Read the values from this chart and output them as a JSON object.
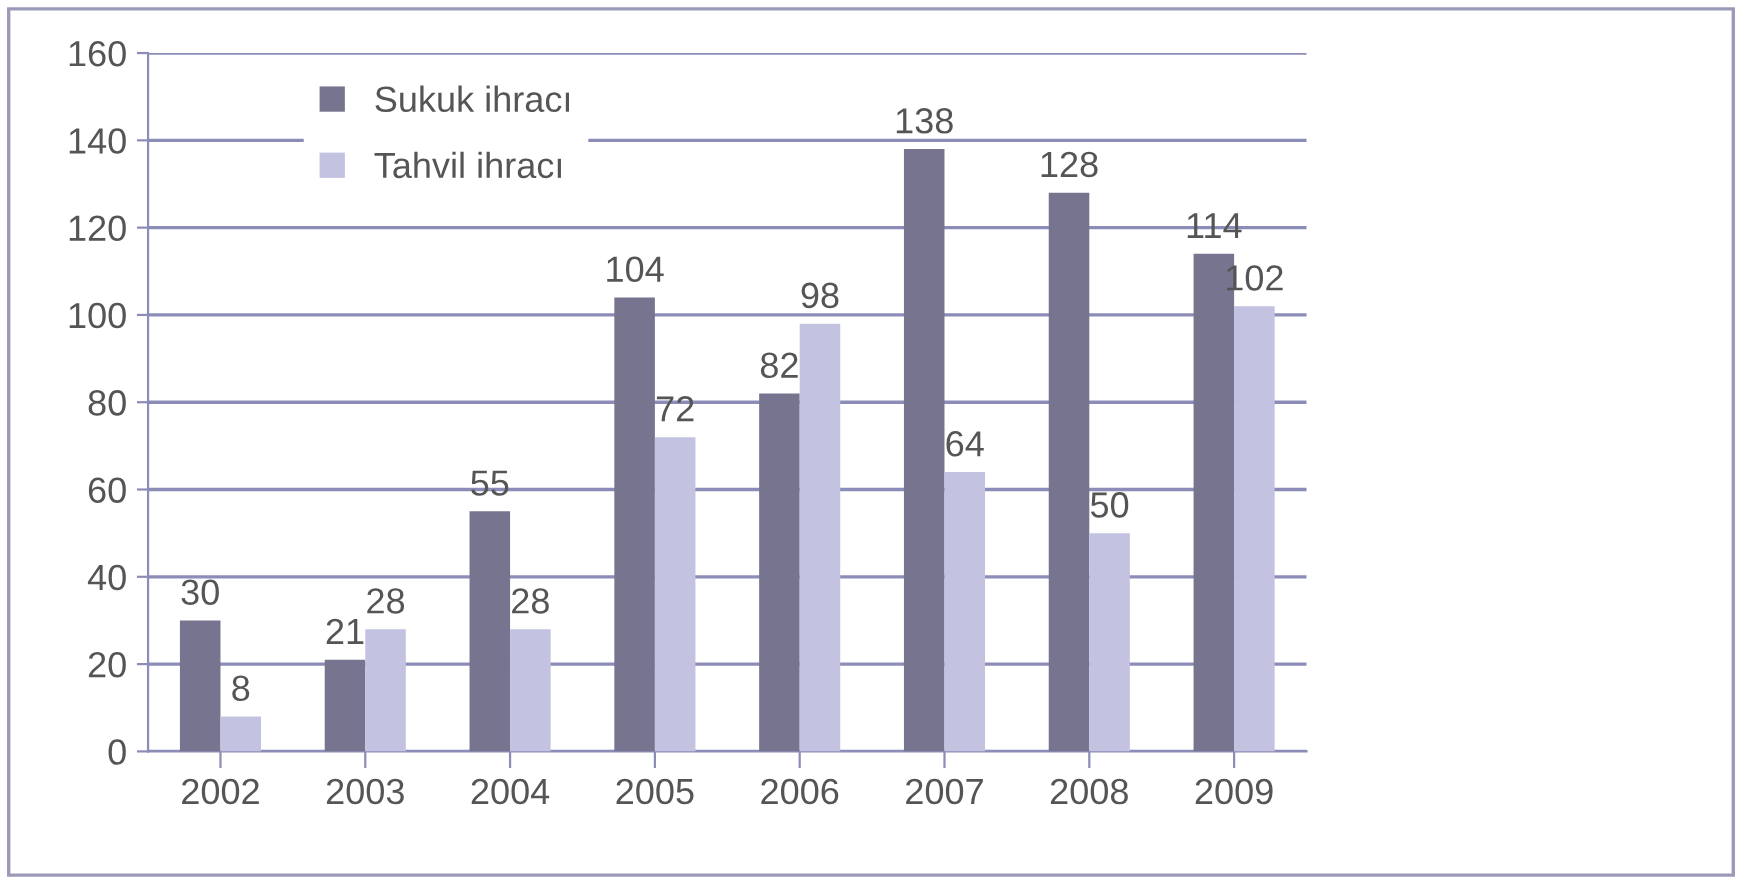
{
  "chart_data": {
    "type": "bar",
    "categories": [
      "2002",
      "2003",
      "2004",
      "2005",
      "2006",
      "2007",
      "2008",
      "2009"
    ],
    "series": [
      {
        "name": "Sukuk ihracı",
        "color": "#76748f",
        "values": [
          30,
          21,
          55,
          104,
          82,
          138,
          128,
          114
        ]
      },
      {
        "name": "Tahvil ihracı",
        "color": "#c3c2e0",
        "values": [
          8,
          28,
          28,
          72,
          98,
          64,
          50,
          102
        ]
      }
    ],
    "ylim": [
      0,
      160
    ],
    "yticks": [
      0,
      20,
      40,
      60,
      80,
      100,
      120,
      140,
      160
    ],
    "grid": "y",
    "legend": "top left",
    "data_labels": true
  }
}
